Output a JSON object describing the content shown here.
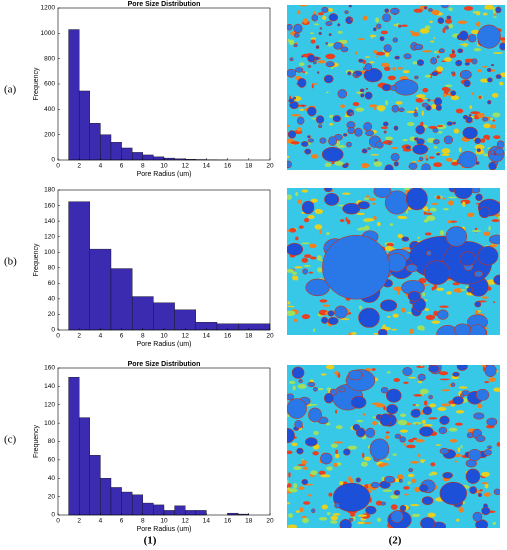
{
  "panel_labels": [
    "(a)",
    "(b)",
    "(c)"
  ],
  "column_labels": [
    "(1)",
    "(2)"
  ],
  "chart_data": [
    {
      "type": "histogram",
      "title": "Pore Size Distribution",
      "xlabel": "Pore Radius (um)",
      "ylabel": "Frequency",
      "color": "#3a2bb0",
      "bins": [
        1,
        2,
        3,
        4,
        5,
        6,
        7,
        8,
        9,
        10,
        11,
        12,
        13,
        14,
        15,
        16
      ],
      "counts": [
        1030,
        545,
        290,
        200,
        140,
        95,
        60,
        40,
        25,
        15,
        10,
        6,
        4,
        2,
        1
      ],
      "xlim": [
        0,
        20
      ],
      "xticks": [
        0,
        2,
        4,
        6,
        8,
        10,
        12,
        14,
        16,
        18,
        20
      ],
      "ylim": [
        0,
        1200
      ],
      "yticks": [
        0,
        200,
        400,
        600,
        800,
        1000,
        1200
      ]
    },
    {
      "type": "histogram",
      "xlabel": "Pore Radius (um)",
      "ylabel": "Frequency",
      "color": "#3a2bb0",
      "bins": [
        1,
        3,
        5,
        7,
        9,
        11,
        13,
        15,
        17,
        20
      ],
      "counts": [
        165,
        104,
        79,
        43,
        35,
        26,
        10,
        8,
        8
      ],
      "xlim": [
        0,
        20
      ],
      "xticks": [
        0,
        2,
        4,
        6,
        8,
        10,
        12,
        14,
        16,
        18,
        20
      ],
      "ylim": [
        0,
        180
      ],
      "yticks": [
        0,
        20,
        40,
        60,
        80,
        100,
        120,
        140,
        160,
        180
      ]
    },
    {
      "type": "histogram",
      "title": "Pore Size Distribution",
      "xlabel": "Pore Radius (um)",
      "ylabel": "Frequency",
      "color": "#3a2bb0",
      "bins": [
        1,
        2,
        3,
        4,
        5,
        6,
        7,
        8,
        9,
        10,
        11,
        12,
        13,
        14,
        15,
        16,
        17,
        18
      ],
      "counts": [
        150,
        106,
        65,
        40,
        30,
        25,
        22,
        13,
        11,
        5,
        10,
        5,
        5,
        0,
        0,
        2,
        1
      ],
      "xlim": [
        0,
        20
      ],
      "xticks": [
        0,
        2,
        4,
        6,
        8,
        10,
        12,
        14,
        16,
        18,
        20
      ],
      "ylim": [
        0,
        160
      ],
      "yticks": [
        0,
        20,
        40,
        60,
        80,
        100,
        120,
        140,
        160
      ]
    }
  ]
}
